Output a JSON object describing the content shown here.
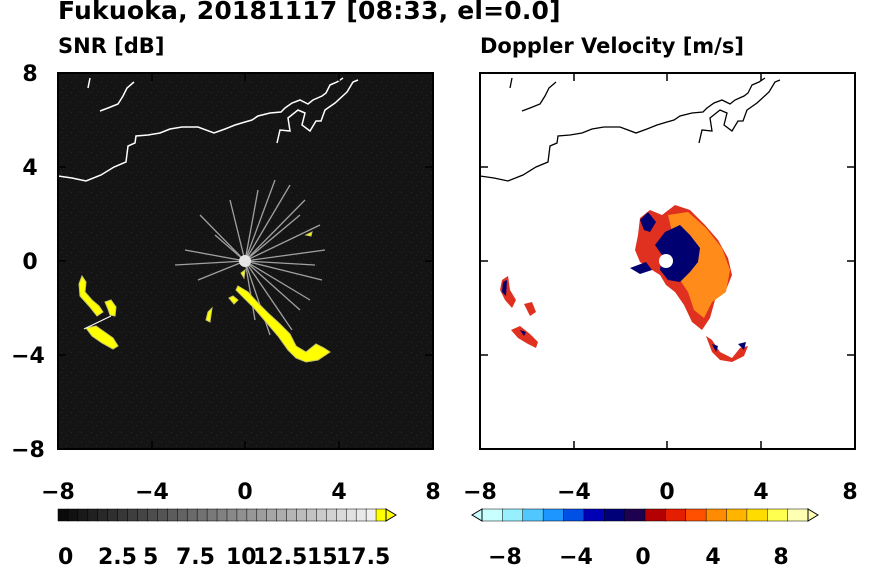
{
  "title": "Fukuoka, 20181117 [08:33, el=0.0]",
  "left_panel": {
    "subtitle": "SNR [dB]",
    "y_ticks": [
      "8",
      "4",
      "0",
      "−4",
      "−8"
    ],
    "x_ticks": [
      "−8",
      "−4",
      "0",
      "4",
      "8"
    ],
    "colorbar_labels": [
      "0",
      "2.5",
      "5",
      "7.5",
      "10",
      "12.5",
      "15",
      "17.5"
    ],
    "colorbar_colors": [
      "#000000",
      "#1a1a1a",
      "#333333",
      "#4d4d4d",
      "#666666",
      "#808080",
      "#999999",
      "#b3b3b3",
      "#cccccc",
      "#e6e6e6",
      "#ffff00"
    ],
    "background": "#141414"
  },
  "right_panel": {
    "subtitle": "Doppler Velocity [m/s]",
    "x_ticks": [
      "−8",
      "−4",
      "0",
      "4",
      "8"
    ],
    "colorbar_labels": [
      "−8",
      "−4",
      "0",
      "4",
      "8"
    ],
    "colorbar_colors": [
      "#c8ffff",
      "#96f0ff",
      "#50c8ff",
      "#1e96ff",
      "#0050e6",
      "#0000b4",
      "#000078",
      "#1e0050",
      "#b40000",
      "#e61e00",
      "#ff5000",
      "#ff8c00",
      "#ffb400",
      "#ffdc00",
      "#ffff50",
      "#ffffb4"
    ],
    "background": "#ffffff"
  },
  "colors": {
    "high_snr": "#ffff00",
    "coast": "#ffffff",
    "coast_right": "#000000",
    "doppler_red": "#e03020",
    "doppler_orange": "#ff8c1a",
    "doppler_navy": "#000070"
  }
}
